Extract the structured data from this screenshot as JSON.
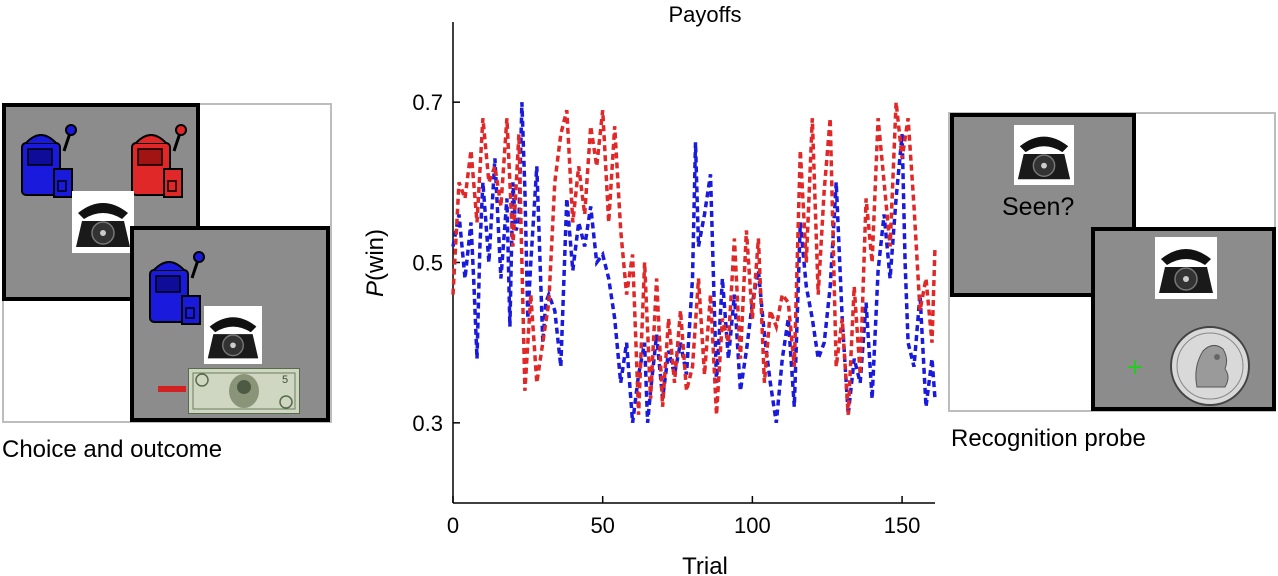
{
  "left_panel": {
    "caption": "Choice and outcome",
    "penalty_mark_color": "#d32020",
    "bill_label": "5",
    "icons": [
      "blue-slot-machine-icon",
      "red-slot-machine-icon",
      "telephone-icon",
      "five-dollar-bill-icon"
    ]
  },
  "right_panel": {
    "caption": "Recognition probe",
    "question": "Seen?",
    "fixation_color": "#22cc22",
    "icons": [
      "telephone-icon",
      "quarter-coin-icon",
      "fixation-cross-icon"
    ]
  },
  "colors": {
    "blue_arm": "#1a1adc",
    "red_arm": "#e02828",
    "screen_gray": "#8c8c8c"
  },
  "chart_data": {
    "type": "line",
    "title": "Payoffs",
    "xlabel": "Trial",
    "ylabel_italic": "P",
    "ylabel_rest": "(win)",
    "xlim": [
      0,
      161
    ],
    "ylim": [
      0.2,
      0.8
    ],
    "xticks": [
      0,
      50,
      100,
      150
    ],
    "yticks": [
      0.3,
      0.5,
      0.7
    ],
    "ytick_labels": [
      "0.3",
      "0.5",
      "0.7"
    ],
    "grid": false,
    "line_style": "dashed",
    "series": [
      {
        "color": "#1a1adc",
        "x": [
          0,
          2,
          4,
          6,
          7,
          8,
          9,
          10,
          12,
          14,
          16,
          18,
          19,
          20,
          21,
          22,
          23,
          24,
          25,
          26,
          28,
          30,
          31,
          32,
          34,
          36,
          38,
          40,
          42,
          44,
          46,
          48,
          50,
          52,
          54,
          56,
          58,
          60,
          62,
          64,
          65,
          66,
          68,
          70,
          72,
          74,
          76,
          78,
          80,
          81,
          82,
          84,
          86,
          88,
          90,
          92,
          94,
          96,
          98,
          100,
          102,
          104,
          106,
          108,
          110,
          112,
          114,
          116,
          118,
          120,
          122,
          124,
          126,
          128,
          130,
          132,
          134,
          136,
          138,
          140,
          142,
          144,
          146,
          148,
          150,
          151,
          152,
          154,
          156,
          158,
          160,
          161
        ],
        "values": [
          0.52,
          0.56,
          0.48,
          0.55,
          0.47,
          0.38,
          0.52,
          0.6,
          0.5,
          0.63,
          0.48,
          0.58,
          0.42,
          0.6,
          0.54,
          0.55,
          0.7,
          0.59,
          0.43,
          0.5,
          0.62,
          0.4,
          0.45,
          0.46,
          0.44,
          0.37,
          0.58,
          0.49,
          0.55,
          0.52,
          0.57,
          0.5,
          0.51,
          0.48,
          0.43,
          0.35,
          0.4,
          0.3,
          0.36,
          0.4,
          0.3,
          0.34,
          0.41,
          0.33,
          0.39,
          0.36,
          0.4,
          0.36,
          0.48,
          0.65,
          0.52,
          0.56,
          0.61,
          0.35,
          0.48,
          0.38,
          0.46,
          0.34,
          0.39,
          0.45,
          0.49,
          0.41,
          0.35,
          0.3,
          0.38,
          0.43,
          0.32,
          0.55,
          0.47,
          0.43,
          0.38,
          0.4,
          0.47,
          0.6,
          0.43,
          0.31,
          0.38,
          0.35,
          0.45,
          0.33,
          0.49,
          0.56,
          0.48,
          0.58,
          0.66,
          0.5,
          0.4,
          0.37,
          0.46,
          0.32,
          0.38,
          0.33
        ]
      },
      {
        "color": "#e02828",
        "x": [
          0,
          2,
          4,
          6,
          8,
          10,
          12,
          14,
          16,
          18,
          20,
          22,
          24,
          26,
          28,
          30,
          32,
          34,
          36,
          38,
          40,
          42,
          44,
          46,
          48,
          50,
          52,
          54,
          56,
          58,
          60,
          62,
          64,
          66,
          68,
          70,
          72,
          74,
          76,
          78,
          80,
          82,
          84,
          86,
          88,
          90,
          92,
          94,
          96,
          98,
          100,
          102,
          104,
          106,
          108,
          110,
          112,
          114,
          116,
          118,
          120,
          122,
          124,
          126,
          128,
          130,
          132,
          134,
          136,
          138,
          140,
          142,
          144,
          146,
          148,
          150,
          152,
          154,
          156,
          158,
          160,
          161
        ],
        "values": [
          0.46,
          0.6,
          0.58,
          0.64,
          0.55,
          0.68,
          0.6,
          0.62,
          0.57,
          0.68,
          0.52,
          0.66,
          0.34,
          0.46,
          0.35,
          0.4,
          0.45,
          0.6,
          0.66,
          0.69,
          0.55,
          0.62,
          0.56,
          0.67,
          0.62,
          0.69,
          0.55,
          0.67,
          0.54,
          0.46,
          0.51,
          0.31,
          0.5,
          0.33,
          0.48,
          0.32,
          0.43,
          0.35,
          0.44,
          0.34,
          0.37,
          0.48,
          0.36,
          0.46,
          0.31,
          0.43,
          0.4,
          0.53,
          0.38,
          0.54,
          0.43,
          0.53,
          0.35,
          0.44,
          0.42,
          0.46,
          0.45,
          0.37,
          0.64,
          0.5,
          0.68,
          0.46,
          0.59,
          0.68,
          0.37,
          0.43,
          0.31,
          0.47,
          0.36,
          0.58,
          0.5,
          0.68,
          0.6,
          0.52,
          0.7,
          0.63,
          0.68,
          0.57,
          0.44,
          0.48,
          0.4,
          0.52
        ]
      }
    ]
  }
}
